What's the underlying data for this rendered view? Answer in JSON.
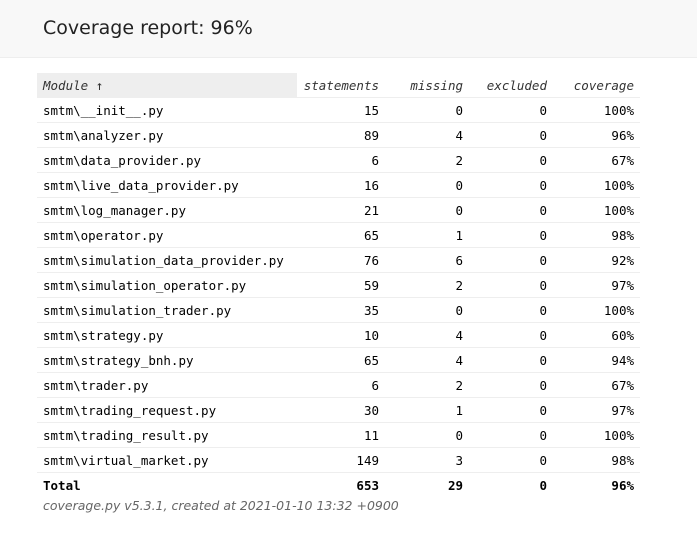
{
  "header": {
    "title": "Coverage report: 96%"
  },
  "table": {
    "columns": [
      "Module ↑",
      "statements",
      "missing",
      "excluded",
      "coverage"
    ],
    "rows": [
      [
        "smtm\\__init__.py",
        15,
        0,
        0,
        "100%"
      ],
      [
        "smtm\\analyzer.py",
        89,
        4,
        0,
        "96%"
      ],
      [
        "smtm\\data_provider.py",
        6,
        2,
        0,
        "67%"
      ],
      [
        "smtm\\live_data_provider.py",
        16,
        0,
        0,
        "100%"
      ],
      [
        "smtm\\log_manager.py",
        21,
        0,
        0,
        "100%"
      ],
      [
        "smtm\\operator.py",
        65,
        1,
        0,
        "98%"
      ],
      [
        "smtm\\simulation_data_provider.py",
        76,
        6,
        0,
        "92%"
      ],
      [
        "smtm\\simulation_operator.py",
        59,
        2,
        0,
        "97%"
      ],
      [
        "smtm\\simulation_trader.py",
        35,
        0,
        0,
        "100%"
      ],
      [
        "smtm\\strategy.py",
        10,
        4,
        0,
        "60%"
      ],
      [
        "smtm\\strategy_bnh.py",
        65,
        4,
        0,
        "94%"
      ],
      [
        "smtm\\trader.py",
        6,
        2,
        0,
        "67%"
      ],
      [
        "smtm\\trading_request.py",
        30,
        1,
        0,
        "97%"
      ],
      [
        "smtm\\trading_result.py",
        11,
        0,
        0,
        "100%"
      ],
      [
        "smtm\\virtual_market.py",
        149,
        3,
        0,
        "98%"
      ]
    ],
    "total": [
      "Total",
      653,
      29,
      0,
      "96%"
    ]
  },
  "footer": {
    "text": "coverage.py v5.3.1, created at 2021-01-10 13:32 +0900"
  }
}
